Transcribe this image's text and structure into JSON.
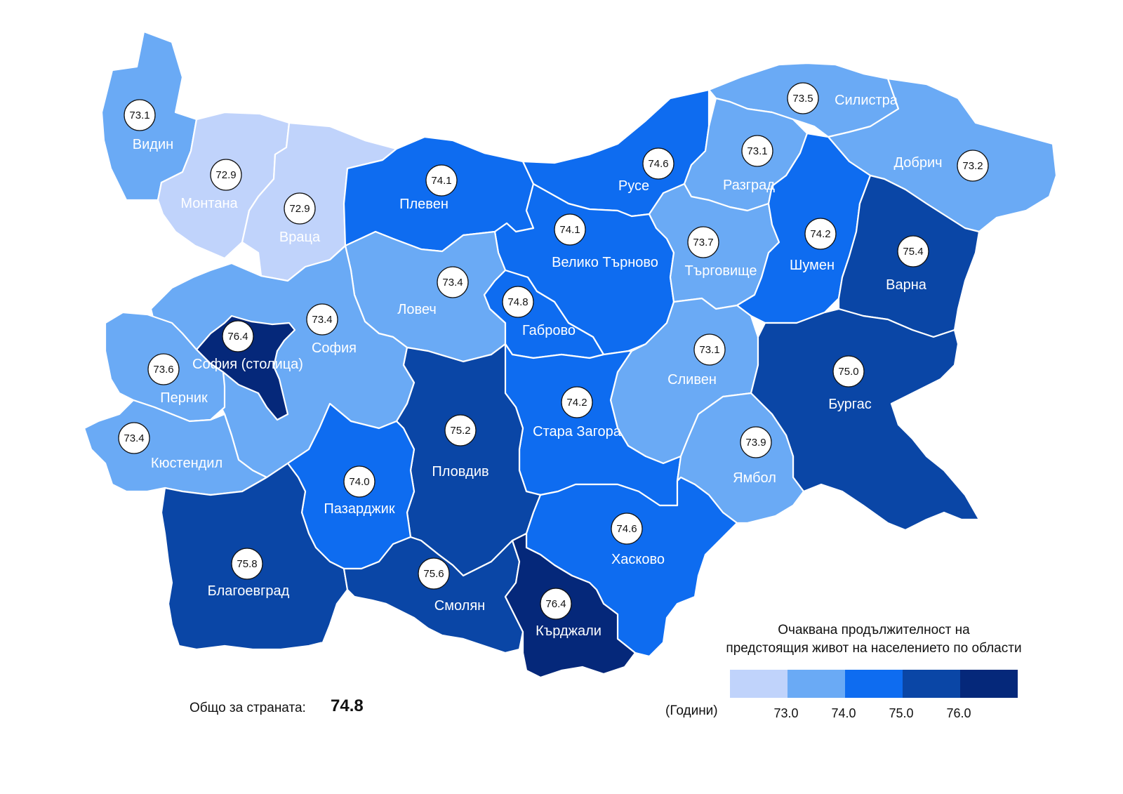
{
  "regions": [
    {
      "id": "vidin",
      "name": "Видин",
      "value": "73.1",
      "class_color": "#6aaaf5"
    },
    {
      "id": "montana",
      "name": "Монтана",
      "value": "72.9",
      "class_color": "#c0d3fb"
    },
    {
      "id": "vratsa",
      "name": "Враца",
      "value": "72.9",
      "class_color": "#c0d3fb"
    },
    {
      "id": "pleven",
      "name": "Плевен",
      "value": "74.1",
      "class_color": "#0e6cf0"
    },
    {
      "id": "ruse",
      "name": "Русе",
      "value": "74.6",
      "class_color": "#0e6cf0"
    },
    {
      "id": "silistra",
      "name": "Силистра",
      "value": "73.5",
      "class_color": "#6aaaf5"
    },
    {
      "id": "razgrad",
      "name": "Разград",
      "value": "73.1",
      "class_color": "#6aaaf5"
    },
    {
      "id": "dobrich",
      "name": "Добрич",
      "value": "73.2",
      "class_color": "#6aaaf5"
    },
    {
      "id": "veliko-tarnovo",
      "name": "Велико Търново",
      "value": "74.1",
      "class_color": "#0e6cf0"
    },
    {
      "id": "targovishte",
      "name": "Търговище",
      "value": "73.7",
      "class_color": "#6aaaf5"
    },
    {
      "id": "shumen",
      "name": "Шумен",
      "value": "74.2",
      "class_color": "#0e6cf0"
    },
    {
      "id": "varna",
      "name": "Варна",
      "value": "75.4",
      "class_color": "#0a46a6"
    },
    {
      "id": "lovech",
      "name": "Ловеч",
      "value": "73.4",
      "class_color": "#6aaaf5"
    },
    {
      "id": "gabrovo",
      "name": "Габрово",
      "value": "74.8",
      "class_color": "#0e6cf0"
    },
    {
      "id": "sofia-oblast",
      "name": "София",
      "value": "73.4",
      "class_color": "#6aaaf5"
    },
    {
      "id": "sofia-city",
      "name": "София (столица)",
      "value": "76.4",
      "class_color": "#05287a"
    },
    {
      "id": "pernik",
      "name": "Перник",
      "value": "73.6",
      "class_color": "#6aaaf5"
    },
    {
      "id": "kyustendil",
      "name": "Кюстендил",
      "value": "73.4",
      "class_color": "#6aaaf5"
    },
    {
      "id": "sliven",
      "name": "Сливен",
      "value": "73.1",
      "class_color": "#6aaaf5"
    },
    {
      "id": "burgas",
      "name": "Бургас",
      "value": "75.0",
      "class_color": "#0a46a6"
    },
    {
      "id": "stara-zagora",
      "name": "Стара Загора",
      "value": "74.2",
      "class_color": "#0e6cf0"
    },
    {
      "id": "yambol",
      "name": "Ямбол",
      "value": "73.9",
      "class_color": "#6aaaf5"
    },
    {
      "id": "plovdiv",
      "name": "Пловдив",
      "value": "75.2",
      "class_color": "#0a46a6"
    },
    {
      "id": "pazardzhik",
      "name": "Пазарджик",
      "value": "74.0",
      "class_color": "#0e6cf0"
    },
    {
      "id": "haskovo",
      "name": "Хасково",
      "value": "74.6",
      "class_color": "#0e6cf0"
    },
    {
      "id": "blagoevgrad",
      "name": "Благоевград",
      "value": "75.8",
      "class_color": "#0a46a6"
    },
    {
      "id": "smolyan",
      "name": "Смолян",
      "value": "75.6",
      "class_color": "#0a46a6"
    },
    {
      "id": "kardzhali",
      "name": "Кърджали",
      "value": "76.4",
      "class_color": "#05287a"
    }
  ],
  "legend": {
    "title_line1": "Очаквана продължителност на",
    "title_line2": "предстоящия живот на населението по области",
    "unit": "(Години)",
    "colors": [
      "#c0d3fb",
      "#6aaaf5",
      "#0e6cf0",
      "#0a46a6",
      "#05287a"
    ],
    "ticks": [
      "73.0",
      "74.0",
      "75.0",
      "76.0"
    ]
  },
  "national": {
    "label": "Общо за страната:",
    "value": "74.8"
  }
}
